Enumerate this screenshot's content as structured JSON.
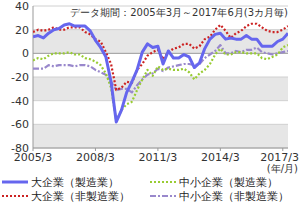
{
  "chart_data": {
    "type": "line",
    "title": "データ期間：2005年3月～2017年6月(3カ月毎)",
    "x_label": "(年/月)",
    "categories": [
      "2005/3",
      null,
      null,
      null,
      null,
      null,
      null,
      null,
      null,
      null,
      null,
      null,
      "2008/3",
      null,
      null,
      null,
      null,
      null,
      null,
      null,
      null,
      null,
      null,
      null,
      "2011/3",
      null,
      null,
      null,
      null,
      null,
      null,
      null,
      null,
      null,
      null,
      null,
      "2014/3",
      null,
      null,
      null,
      null,
      null,
      null,
      null,
      null,
      null,
      null,
      null,
      "2017/3",
      null
    ],
    "series": [
      {
        "name": "大企業（製造業）",
        "color": "#6666ee",
        "line_style": "solid",
        "values": [
          14,
          15,
          13,
          17,
          20,
          21,
          24,
          25,
          23,
          23,
          23,
          19,
          11,
          5,
          -3,
          -24,
          -58,
          -48,
          -33,
          -24,
          -14,
          1,
          8,
          5,
          6,
          -9,
          2,
          -4,
          -4,
          -1,
          -3,
          -12,
          -8,
          4,
          12,
          16,
          17,
          12,
          13,
          12,
          12,
          15,
          12,
          12,
          6,
          6,
          6,
          10,
          12,
          17
        ]
      },
      {
        "name": "中小企業（製造業）",
        "color": "#99cc33",
        "line_style": "dotted",
        "values": [
          -6,
          -4,
          -5,
          -2,
          0,
          0,
          0,
          1,
          -1,
          -1,
          -4,
          -5,
          -7,
          -10,
          -17,
          -29,
          -57,
          -48,
          -43,
          -41,
          -31,
          -22,
          -14,
          -19,
          -11,
          -14,
          -13,
          -14,
          -14,
          -13,
          -16,
          -22,
          -17,
          -14,
          -9,
          -1,
          4,
          -1,
          -1,
          1,
          1,
          0,
          0,
          0,
          -4,
          -5,
          -3,
          -1,
          5,
          7
        ]
      },
      {
        "name": "大企業（非製造業）",
        "color": "#cc2222",
        "line_style": "dotted",
        "values": [
          18,
          20,
          19,
          20,
          22,
          20,
          20,
          22,
          22,
          22,
          18,
          16,
          12,
          10,
          1,
          -9,
          -31,
          -29,
          -24,
          -25,
          -14,
          -9,
          -2,
          1,
          3,
          -5,
          1,
          4,
          5,
          8,
          8,
          4,
          6,
          12,
          14,
          20,
          24,
          19,
          13,
          17,
          19,
          23,
          25,
          25,
          22,
          19,
          18,
          18,
          20,
          23
        ]
      },
      {
        "name": "中小企業（非製造業）",
        "color": "#9988cc",
        "line_style": "dashdot",
        "values": [
          -13,
          -13,
          -13,
          -10,
          -11,
          -10,
          -10,
          -10,
          -11,
          -10,
          -10,
          -11,
          -14,
          -16,
          -18,
          -24,
          -31,
          -30,
          -30,
          -33,
          -27,
          -22,
          -18,
          -17,
          -13,
          -15,
          -12,
          -11,
          -10,
          -9,
          -9,
          -10,
          -9,
          -4,
          -1,
          2,
          7,
          0,
          0,
          2,
          1,
          3,
          3,
          5,
          1,
          0,
          -1,
          0,
          1,
          2
        ]
      }
    ],
    "ylim": [
      -80,
      40
    ],
    "yticks": [
      -80,
      -60,
      -40,
      -20,
      0,
      20,
      40
    ],
    "grid": true,
    "legend": "bottom"
  }
}
